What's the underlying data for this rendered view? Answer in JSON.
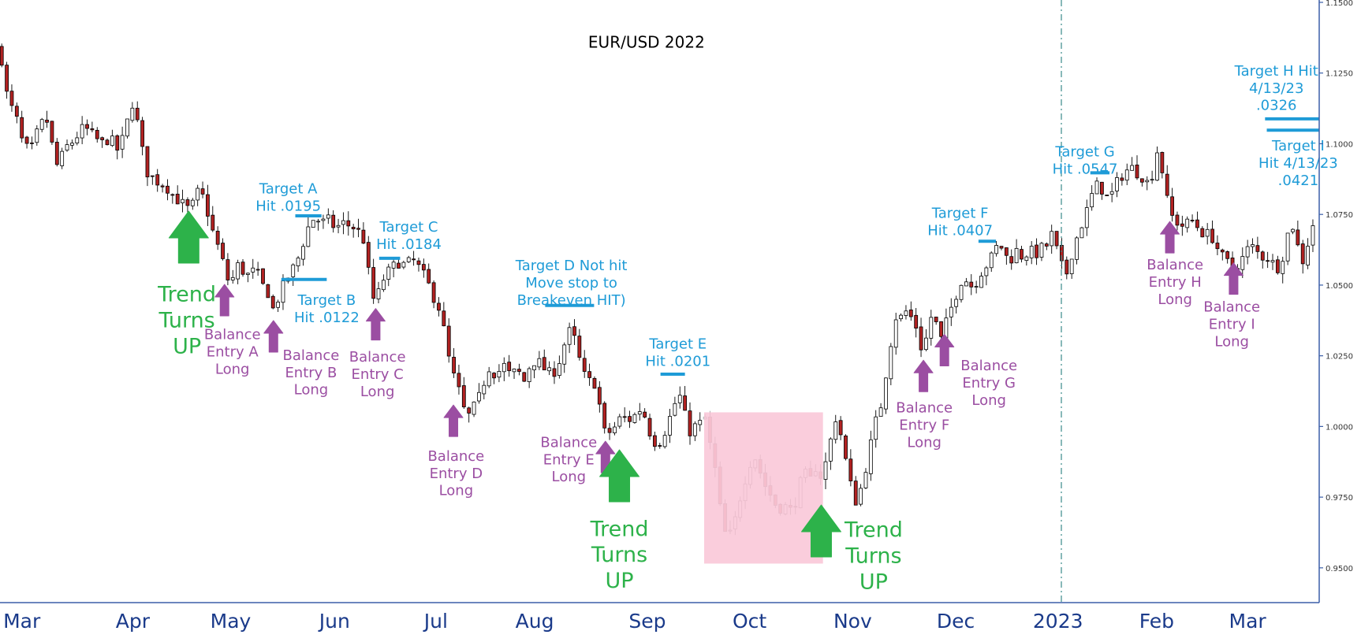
{
  "chart_data": {
    "type": "candlestick",
    "title": "EUR/USD 2022",
    "ylim": [
      0.94,
      1.15
    ],
    "y_ticks": [
      "1.1500",
      "1.1250",
      "1.1000",
      "1.0750",
      "1.0500",
      "1.0250",
      "1.0000",
      "0.9750",
      "0.9500"
    ],
    "x_ticks": [
      "Mar",
      "Apr",
      "May",
      "Jun",
      "Jul",
      "Aug",
      "Sep",
      "Oct",
      "Nov",
      "Dec",
      "2023",
      "Feb",
      "Mar"
    ],
    "close_path": [
      [
        0,
        1.134
      ],
      [
        9,
        1.115
      ],
      [
        18,
        1.11
      ],
      [
        26,
        1.1
      ],
      [
        35,
        1.097
      ],
      [
        46,
        1.107
      ],
      [
        55,
        1.108
      ],
      [
        62,
        1.095
      ],
      [
        67,
        1.091
      ],
      [
        73,
        1.098
      ],
      [
        84,
        1.101
      ],
      [
        96,
        1.106
      ],
      [
        106,
        1.103
      ],
      [
        116,
        1.1
      ],
      [
        126,
        1.102
      ],
      [
        136,
        1.097
      ],
      [
        146,
        1.108
      ],
      [
        153,
        1.116
      ],
      [
        160,
        1.102
      ],
      [
        168,
        1.09
      ],
      [
        178,
        1.087
      ],
      [
        190,
        1.085
      ],
      [
        200,
        1.081
      ],
      [
        212,
        1.078
      ],
      [
        218,
        1.076
      ],
      [
        225,
        1.083
      ],
      [
        233,
        1.081
      ],
      [
        240,
        1.073
      ],
      [
        246,
        1.066
      ],
      [
        252,
        1.062
      ],
      [
        260,
        1.052
      ],
      [
        266,
        1.052
      ],
      [
        272,
        1.057
      ],
      [
        278,
        1.055
      ],
      [
        286,
        1.053
      ],
      [
        292,
        1.056
      ],
      [
        300,
        1.05
      ],
      [
        306,
        1.048
      ],
      [
        313,
        1.041
      ],
      [
        318,
        1.045
      ],
      [
        326,
        1.051
      ],
      [
        334,
        1.055
      ],
      [
        342,
        1.06
      ],
      [
        352,
        1.07
      ],
      [
        360,
        1.074
      ],
      [
        368,
        1.072
      ],
      [
        376,
        1.073
      ],
      [
        384,
        1.07
      ],
      [
        392,
        1.072
      ],
      [
        400,
        1.071
      ],
      [
        408,
        1.07
      ],
      [
        416,
        1.066
      ],
      [
        421,
        1.056
      ],
      [
        427,
        1.045
      ],
      [
        433,
        1.047
      ],
      [
        440,
        1.053
      ],
      [
        448,
        1.056
      ],
      [
        456,
        1.058
      ],
      [
        464,
        1.057
      ],
      [
        472,
        1.059
      ],
      [
        480,
        1.056
      ],
      [
        488,
        1.052
      ],
      [
        496,
        1.046
      ],
      [
        504,
        1.041
      ],
      [
        510,
        1.031
      ],
      [
        516,
        1.02
      ],
      [
        522,
        1.016
      ],
      [
        528,
        1.01
      ],
      [
        534,
        1.002
      ],
      [
        540,
        1.006
      ],
      [
        546,
        1.008
      ],
      [
        552,
        1.014
      ],
      [
        560,
        1.021
      ],
      [
        568,
        1.018
      ],
      [
        576,
        1.022
      ],
      [
        584,
        1.018
      ],
      [
        592,
        1.02
      ],
      [
        600,
        1.016
      ],
      [
        608,
        1.023
      ],
      [
        616,
        1.023
      ],
      [
        624,
        1.02
      ],
      [
        632,
        1.018
      ],
      [
        640,
        1.023
      ],
      [
        648,
        1.031
      ],
      [
        654,
        1.035
      ],
      [
        660,
        1.028
      ],
      [
        666,
        1.02
      ],
      [
        672,
        1.016
      ],
      [
        680,
        1.016
      ],
      [
        686,
        1.008
      ],
      [
        692,
        0.998
      ],
      [
        700,
        0.998
      ],
      [
        706,
        1.001
      ],
      [
        712,
        1.004
      ],
      [
        718,
        1.002
      ],
      [
        724,
        1.003
      ],
      [
        732,
        1.006
      ],
      [
        740,
        1.003
      ],
      [
        746,
        0.995
      ],
      [
        754,
        0.994
      ],
      [
        762,
        0.999
      ],
      [
        770,
        1.006
      ],
      [
        777,
        1.012
      ],
      [
        783,
        1.005
      ],
      [
        789,
        0.998
      ],
      [
        795,
        1.0
      ],
      [
        801,
        1.001
      ],
      [
        807,
        1.003
      ],
      [
        813,
        0.993
      ],
      [
        819,
        0.984
      ],
      [
        826,
        0.967
      ],
      [
        832,
        0.96
      ],
      [
        838,
        0.963
      ],
      [
        844,
        0.97
      ],
      [
        850,
        0.979
      ],
      [
        856,
        0.984
      ],
      [
        862,
        0.991
      ],
      [
        868,
        0.986
      ],
      [
        874,
        0.98
      ],
      [
        880,
        0.977
      ],
      [
        886,
        0.973
      ],
      [
        892,
        0.971
      ],
      [
        898,
        0.972
      ],
      [
        904,
        0.97
      ],
      [
        910,
        0.973
      ],
      [
        916,
        0.98
      ],
      [
        922,
        0.983
      ],
      [
        928,
        0.981
      ],
      [
        934,
        0.986
      ],
      [
        940,
        0.982
      ],
      [
        946,
        0.988
      ],
      [
        952,
        0.997
      ],
      [
        958,
        1.005
      ],
      [
        964,
        0.994
      ],
      [
        970,
        0.985
      ],
      [
        976,
        0.976
      ],
      [
        982,
        0.972
      ],
      [
        988,
        0.983
      ],
      [
        994,
        0.988
      ],
      [
        1000,
        1.001
      ],
      [
        1006,
        1.003
      ],
      [
        1012,
        1.015
      ],
      [
        1018,
        1.026
      ],
      [
        1024,
        1.039
      ],
      [
        1030,
        1.038
      ],
      [
        1036,
        1.041
      ],
      [
        1042,
        1.039
      ],
      [
        1048,
        1.036
      ],
      [
        1054,
        1.028
      ],
      [
        1060,
        1.031
      ],
      [
        1066,
        1.039
      ],
      [
        1072,
        1.036
      ],
      [
        1078,
        1.03
      ],
      [
        1084,
        1.038
      ],
      [
        1090,
        1.043
      ],
      [
        1096,
        1.048
      ],
      [
        1102,
        1.053
      ],
      [
        1108,
        1.051
      ],
      [
        1114,
        1.049
      ],
      [
        1120,
        1.053
      ],
      [
        1126,
        1.056
      ],
      [
        1132,
        1.058
      ],
      [
        1138,
        1.062
      ],
      [
        1144,
        1.065
      ],
      [
        1150,
        1.061
      ],
      [
        1156,
        1.058
      ],
      [
        1162,
        1.063
      ],
      [
        1168,
        1.06
      ],
      [
        1174,
        1.061
      ],
      [
        1180,
        1.062
      ],
      [
        1186,
        1.061
      ],
      [
        1192,
        1.063
      ],
      [
        1198,
        1.064
      ],
      [
        1204,
        1.068
      ],
      [
        1210,
        1.062
      ],
      [
        1216,
        1.056
      ],
      [
        1222,
        1.054
      ],
      [
        1228,
        1.063
      ],
      [
        1234,
        1.068
      ],
      [
        1240,
        1.073
      ],
      [
        1246,
        1.078
      ],
      [
        1252,
        1.084
      ],
      [
        1258,
        1.086
      ],
      [
        1264,
        1.082
      ],
      [
        1270,
        1.08
      ],
      [
        1276,
        1.085
      ],
      [
        1282,
        1.088
      ],
      [
        1288,
        1.09
      ],
      [
        1294,
        1.092
      ],
      [
        1300,
        1.09
      ],
      [
        1306,
        1.089
      ],
      [
        1312,
        1.086
      ],
      [
        1318,
        1.088
      ],
      [
        1324,
        1.098
      ],
      [
        1330,
        1.091
      ],
      [
        1336,
        1.08
      ],
      [
        1342,
        1.074
      ],
      [
        1348,
        1.072
      ],
      [
        1354,
        1.071
      ],
      [
        1360,
        1.072
      ],
      [
        1366,
        1.073
      ],
      [
        1372,
        1.07
      ],
      [
        1378,
        1.068
      ],
      [
        1384,
        1.068
      ],
      [
        1390,
        1.066
      ],
      [
        1396,
        1.061
      ],
      [
        1402,
        1.059
      ],
      [
        1408,
        1.057
      ],
      [
        1414,
        1.056
      ],
      [
        1420,
        1.058
      ],
      [
        1426,
        1.062
      ],
      [
        1432,
        1.064
      ],
      [
        1438,
        1.062
      ],
      [
        1444,
        1.06
      ],
      [
        1450,
        1.06
      ],
      [
        1456,
        1.058
      ],
      [
        1462,
        1.056
      ],
      [
        1468,
        1.06
      ],
      [
        1474,
        1.068
      ],
      [
        1480,
        1.071
      ],
      [
        1486,
        1.063
      ],
      [
        1492,
        1.058
      ],
      [
        1498,
        1.066
      ],
      [
        1504,
        1.073
      ],
      [
        1510,
        1.076
      ]
    ],
    "target_lines": [
      {
        "x1": 338,
        "x2": 368,
        "y": 1.0745
      },
      {
        "x1": 322,
        "x2": 374,
        "y": 1.052
      },
      {
        "x1": 434,
        "x2": 458,
        "y": 1.0595
      },
      {
        "x1": 624,
        "x2": 680,
        "y": 1.0428
      },
      {
        "x1": 756,
        "x2": 784,
        "y": 1.0185
      },
      {
        "x1": 1120,
        "x2": 1140,
        "y": 1.0655
      },
      {
        "x1": 1248,
        "x2": 1270,
        "y": 1.0897
      },
      {
        "x1": 1448,
        "x2": 1510,
        "y": 1.1088
      },
      {
        "x1": 1450,
        "x2": 1510,
        "y": 1.1048
      }
    ],
    "highlight_box": {
      "x1": 806,
      "x2": 942,
      "y1": 1.005,
      "y2": 0.9515
    },
    "annotations": [
      {
        "lines": [
          "EUR/USD 2022"
        ],
        "x": 740,
        "y": 48,
        "color": "#000000",
        "size": 20,
        "role": "title"
      },
      {
        "lines": [
          "Target A",
          "Hit .0195"
        ],
        "x": 330,
        "y": 218,
        "color": "#1e9bd7",
        "size": 18
      },
      {
        "lines": [
          "Target B",
          "Hit .0122"
        ],
        "x": 374,
        "y": 347,
        "color": "#1e9bd7",
        "size": 18
      },
      {
        "lines": [
          "Target C",
          "Hit .0184"
        ],
        "x": 468,
        "y": 262,
        "color": "#1e9bd7",
        "size": 18
      },
      {
        "lines": [
          "Target D Not hit",
          "Move stop to",
          "Breakeven HIT)"
        ],
        "x": 654,
        "y": 307,
        "color": "#1e9bd7",
        "size": 18
      },
      {
        "lines": [
          "Target E",
          "Hit .0201"
        ],
        "x": 776,
        "y": 398,
        "color": "#1e9bd7",
        "size": 18
      },
      {
        "lines": [
          "Target F",
          "Hit .0407"
        ],
        "x": 1099,
        "y": 246,
        "color": "#1e9bd7",
        "size": 18
      },
      {
        "lines": [
          "Target G",
          "Hit .0547"
        ],
        "x": 1242,
        "y": 175,
        "color": "#1e9bd7",
        "size": 18
      },
      {
        "lines": [
          "Target H Hit",
          "4/13/23",
          ".0326"
        ],
        "x": 1461,
        "y": 81,
        "color": "#1e9bd7",
        "size": 18
      },
      {
        "lines": [
          "Target I",
          "Hit 4/13/23",
          ".0421"
        ],
        "x": 1486,
        "y": 168,
        "color": "#1e9bd7",
        "size": 18
      },
      {
        "lines": [
          "Balance",
          "Entry A",
          "Long"
        ],
        "x": 266,
        "y": 387,
        "color": "#9b4ea2",
        "size": 18
      },
      {
        "lines": [
          "Balance",
          "Entry B",
          "Long"
        ],
        "x": 356,
        "y": 411,
        "color": "#9b4ea2",
        "size": 18
      },
      {
        "lines": [
          "Balance",
          "Entry C",
          "Long"
        ],
        "x": 432,
        "y": 413,
        "color": "#9b4ea2",
        "size": 18
      },
      {
        "lines": [
          "Balance",
          "Entry D",
          "Long"
        ],
        "x": 522,
        "y": 528,
        "color": "#9b4ea2",
        "size": 18
      },
      {
        "lines": [
          "Balance",
          "Entry E",
          "Long"
        ],
        "x": 651,
        "y": 512,
        "color": "#9b4ea2",
        "size": 18
      },
      {
        "lines": [
          "Balance",
          "Entry F",
          "Long"
        ],
        "x": 1058,
        "y": 472,
        "color": "#9b4ea2",
        "size": 18
      },
      {
        "lines": [
          "Balance",
          "Entry G",
          "Long"
        ],
        "x": 1132,
        "y": 423,
        "color": "#9b4ea2",
        "size": 18
      },
      {
        "lines": [
          "Balance",
          "Entry H",
          "Long"
        ],
        "x": 1345,
        "y": 306,
        "color": "#9b4ea2",
        "size": 18
      },
      {
        "lines": [
          "Balance",
          "Entry I",
          "Long"
        ],
        "x": 1410,
        "y": 355,
        "color": "#9b4ea2",
        "size": 18
      },
      {
        "lines": [
          "Trend",
          "Turns",
          "UP"
        ],
        "x": 214,
        "y": 340,
        "color": "#2db24a",
        "size": 27
      },
      {
        "lines": [
          "Trend",
          "Turns",
          "UP"
        ],
        "x": 709,
        "y": 612,
        "color": "#2db24a",
        "size": 27
      },
      {
        "lines": [
          "Trend",
          "Turns",
          "UP"
        ],
        "x": 1000,
        "y": 613,
        "color": "#2db24a",
        "size": 27
      }
    ],
    "purple_arrows": [
      {
        "x": 257,
        "tip_y": 330
      },
      {
        "x": 313,
        "tip_y": 372
      },
      {
        "x": 430,
        "tip_y": 358
      },
      {
        "x": 519,
        "tip_y": 470
      },
      {
        "x": 693,
        "tip_y": 512
      },
      {
        "x": 1057,
        "tip_y": 418
      },
      {
        "x": 1081,
        "tip_y": 388
      },
      {
        "x": 1339,
        "tip_y": 257
      },
      {
        "x": 1412,
        "tip_y": 305
      }
    ],
    "green_arrows": [
      {
        "x": 216,
        "tip_y": 245
      },
      {
        "x": 709,
        "tip_y": 522
      },
      {
        "x": 940,
        "tip_y": 586
      }
    ],
    "colors": {
      "up": "#ffffff",
      "down": "#b22222",
      "wick": "#000000",
      "target": "#1e9bd7",
      "entry": "#9b4ea2",
      "trend": "#2db24a",
      "box": "#f9c0d3",
      "axis": "#3b5fa8"
    }
  }
}
